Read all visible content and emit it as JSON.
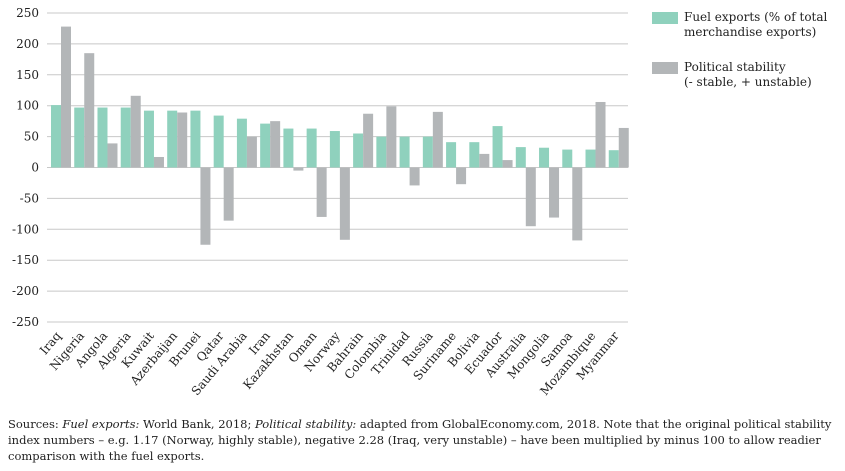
{
  "chart_data": {
    "type": "bar",
    "title": "",
    "xlabel": "",
    "ylabel": "",
    "ylim": [
      -250,
      250
    ],
    "yticks": [
      250,
      200,
      150,
      100,
      50,
      0,
      -50,
      -100,
      -150,
      -200,
      -250
    ],
    "categories": [
      "Iraq",
      "Nigeria",
      "Angola",
      "Algeria",
      "Kuwait",
      "Azerbaijan",
      "Brunei",
      "Qatar",
      "Saudi Arabia",
      "Iran",
      "Kazakhstan",
      "Oman",
      "Norway",
      "Bahrain",
      "Colombia",
      "Trinidad",
      "Russia",
      "Suriname",
      "Bolivia",
      "Ecuador",
      "Australia",
      "Mongolia",
      "Samoa",
      "Mozambique",
      "Myanmar"
    ],
    "series": [
      {
        "name": "Fuel exports (% of total merchandise exports)",
        "color": "#8fd1bd",
        "values": [
          101,
          97,
          97,
          97,
          92,
          92,
          92,
          84,
          79,
          71,
          63,
          63,
          59,
          55,
          50,
          50,
          50,
          41,
          41,
          67,
          33,
          32,
          29,
          29,
          28
        ]
      },
      {
        "name": "Political stability (- stable, + unstable)",
        "color": "#b3b6b8",
        "values": [
          228,
          185,
          39,
          116,
          17,
          89,
          -125,
          -86,
          50,
          75,
          -5,
          -80,
          -117,
          87,
          99,
          -29,
          90,
          -27,
          22,
          12,
          -95,
          -81,
          -118,
          106,
          64
        ]
      }
    ],
    "legend": [
      {
        "lines": [
          "Fuel exports (% of total",
          "merchandise exports)"
        ]
      },
      {
        "lines": [
          "Political stability",
          "(- stable, + unstable)"
        ]
      }
    ]
  },
  "source": {
    "prefix": "Sources: ",
    "fuel_label": "Fuel exports:",
    "fuel_text": " World Bank, 2018; ",
    "stability_label": "Political stability:",
    "stability_text": " adapted from GlobalEconomy.com, 2018. Note that the original political stability index numbers – e.g. 1.17 (Norway, highly stable), negative 2.28 (Iraq, very unstable) – have been multiplied by minus 100 to allow readier comparison with the fuel exports."
  }
}
